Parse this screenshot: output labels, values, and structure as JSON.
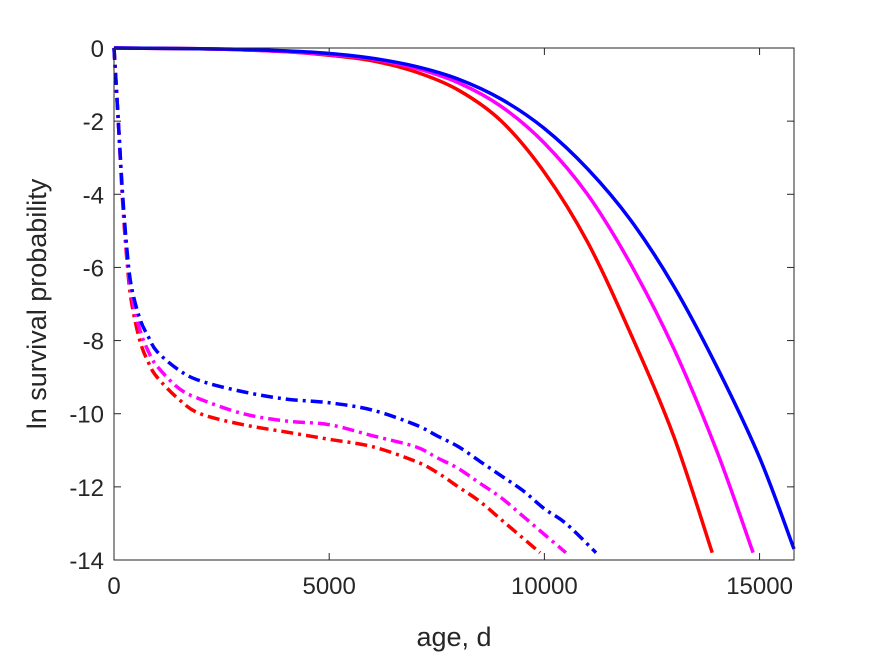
{
  "chart_data": {
    "type": "line",
    "title": "",
    "xlabel": "age, d",
    "ylabel": "ln survival probability",
    "xlim": [
      0,
      15800
    ],
    "ylim": [
      -14,
      0
    ],
    "xticks": [
      0,
      5000,
      10000,
      15000
    ],
    "yticks": [
      0,
      -2,
      -4,
      -6,
      -8,
      -10,
      -12,
      -14
    ],
    "xtick_labels": [
      "0",
      "5000",
      "10000",
      "15000"
    ],
    "ytick_labels": [
      "0",
      "-2",
      "-4",
      "-6",
      "-8",
      "-10",
      "-12",
      "-14"
    ],
    "grid": false,
    "legend": "none",
    "series": [
      {
        "color": "#ff0000",
        "style": "solid",
        "x": [
          0,
          2000,
          3000,
          4000,
          5000,
          6000,
          7000,
          8000,
          9000,
          10000,
          11000,
          12000,
          13000,
          13900
        ],
        "y": [
          0,
          -0.02,
          -0.05,
          -0.1,
          -0.2,
          -0.35,
          -0.65,
          -1.15,
          -2.0,
          -3.4,
          -5.3,
          -7.8,
          -10.6,
          -13.8
        ]
      },
      {
        "color": "#ff00ff",
        "style": "solid",
        "x": [
          0,
          2000,
          3000,
          4000,
          5000,
          6000,
          7000,
          8000,
          9000,
          10000,
          11000,
          12000,
          13000,
          14000,
          14850
        ],
        "y": [
          0,
          -0.02,
          -0.05,
          -0.1,
          -0.18,
          -0.3,
          -0.55,
          -0.95,
          -1.6,
          -2.6,
          -4.0,
          -5.9,
          -8.2,
          -11.0,
          -13.8
        ]
      },
      {
        "color": "#0000ff",
        "style": "solid",
        "x": [
          0,
          2000,
          3000,
          4000,
          5000,
          6000,
          7000,
          8000,
          9000,
          10000,
          11000,
          12000,
          13000,
          14000,
          15000,
          15800
        ],
        "y": [
          0,
          -0.02,
          -0.04,
          -0.08,
          -0.15,
          -0.28,
          -0.5,
          -0.85,
          -1.4,
          -2.2,
          -3.3,
          -4.7,
          -6.5,
          -8.7,
          -11.2,
          -13.7
        ]
      },
      {
        "color": "#ff0000",
        "style": "dashdot",
        "x": [
          0,
          100,
          200,
          300,
          400,
          600,
          800,
          1000,
          1500,
          2000,
          3000,
          4000,
          5000,
          6000,
          7000,
          7500,
          8000,
          8500,
          9000,
          9500,
          9900
        ],
        "y": [
          0,
          -2.0,
          -4.2,
          -5.8,
          -6.9,
          -8.0,
          -8.6,
          -9.0,
          -9.6,
          -10.0,
          -10.3,
          -10.5,
          -10.7,
          -10.9,
          -11.3,
          -11.6,
          -12.0,
          -12.4,
          -12.9,
          -13.4,
          -13.8
        ]
      },
      {
        "color": "#ff00ff",
        "style": "dashdot",
        "x": [
          0,
          100,
          200,
          300,
          400,
          600,
          800,
          1000,
          1500,
          2000,
          3000,
          4000,
          5000,
          6000,
          7000,
          7500,
          8000,
          8500,
          9000,
          9500,
          10000,
          10500
        ],
        "y": [
          0,
          -2.0,
          -4.1,
          -5.7,
          -6.7,
          -7.7,
          -8.3,
          -8.7,
          -9.3,
          -9.6,
          -10.0,
          -10.2,
          -10.3,
          -10.6,
          -10.9,
          -11.2,
          -11.5,
          -11.9,
          -12.3,
          -12.8,
          -13.3,
          -13.8
        ]
      },
      {
        "color": "#0000ff",
        "style": "dashdot",
        "x": [
          0,
          100,
          200,
          300,
          400,
          600,
          800,
          1000,
          1500,
          2000,
          3000,
          4000,
          5000,
          6000,
          7000,
          7500,
          8000,
          8500,
          9000,
          9500,
          10000,
          10500,
          11200
        ],
        "y": [
          0,
          -2.0,
          -4.0,
          -5.5,
          -6.5,
          -7.4,
          -7.9,
          -8.3,
          -8.8,
          -9.1,
          -9.4,
          -9.6,
          -9.7,
          -9.9,
          -10.3,
          -10.6,
          -10.9,
          -11.3,
          -11.7,
          -12.1,
          -12.6,
          -13.0,
          -13.8
        ]
      }
    ]
  }
}
